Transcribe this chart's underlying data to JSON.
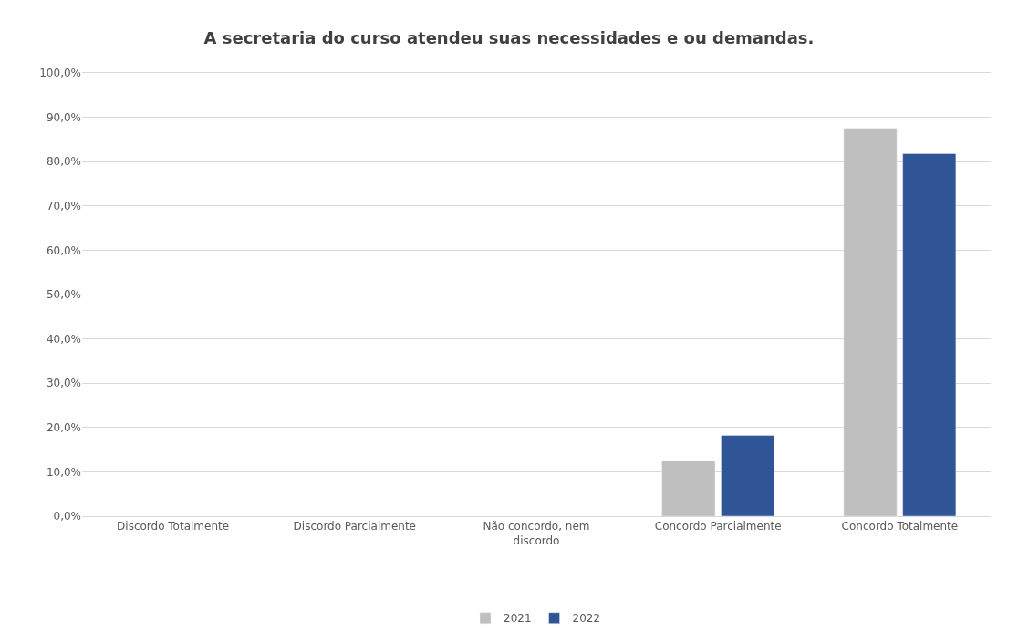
{
  "chart_data": {
    "type": "bar",
    "title": "A secretaria do curso atendeu suas necessidades e ou demandas.",
    "categories": [
      "Discordo Totalmente",
      "Discordo Parcialmente",
      "Não concordo, nem discordo",
      "Concordo Parcialmente",
      "Concordo Totalmente"
    ],
    "series": [
      {
        "name": "2021",
        "color": "#bfbfbf",
        "values": [
          null,
          null,
          null,
          12.5,
          87.5
        ]
      },
      {
        "name": "2022",
        "color": "#2f5597",
        "values": [
          null,
          null,
          null,
          18.2,
          81.8
        ]
      }
    ],
    "ylim": [
      0,
      100
    ],
    "yticks": [
      {
        "value": 0,
        "label": "0,0%"
      },
      {
        "value": 10,
        "label": "10,0%"
      },
      {
        "value": 20,
        "label": "20,0%"
      },
      {
        "value": 30,
        "label": "30,0%"
      },
      {
        "value": 40,
        "label": "40,0%"
      },
      {
        "value": 50,
        "label": "50,0%"
      },
      {
        "value": 60,
        "label": "60,0%"
      },
      {
        "value": 70,
        "label": "70,0%"
      },
      {
        "value": 80,
        "label": "80,0%"
      },
      {
        "value": 90,
        "label": "90,0%"
      },
      {
        "value": 100,
        "label": "100,0%"
      }
    ],
    "grid": "y",
    "legend": "bottom"
  }
}
